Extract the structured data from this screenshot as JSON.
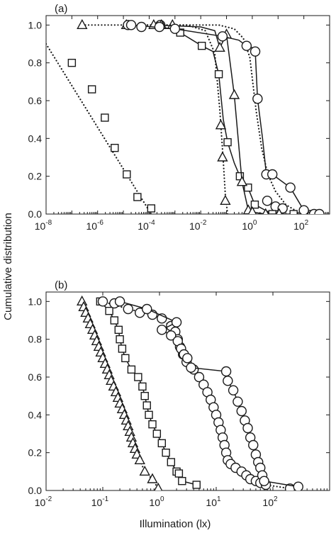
{
  "figure": {
    "ylabel": "Cumulative distribution",
    "xlabel": "Illumination (lx)"
  },
  "chart_data": [
    {
      "type": "line",
      "panel_label": "(a)",
      "x_scale": "log",
      "xlim": [
        1e-08,
        1000
      ],
      "ylim": [
        0,
        1.05
      ],
      "x_ticks": [
        {
          "base": "10",
          "exp": "-8"
        },
        {
          "base": "10",
          "exp": "-6"
        },
        {
          "base": "10",
          "exp": "-4"
        },
        {
          "base": "10",
          "exp": "-2"
        },
        {
          "base": "10",
          "exp": "0"
        },
        {
          "base": "10",
          "exp": "2"
        }
      ],
      "y_tick_labels": [
        "0.0",
        "0.2",
        "0.4",
        "0.6",
        "0.8",
        "1.0"
      ],
      "y_ticks": [
        0,
        0.2,
        0.4,
        0.6,
        0.8,
        1.0
      ],
      "grid": false,
      "series": [
        {
          "marker": "square",
          "line": "dotted",
          "x": [
            1e-07,
            6e-07,
            1.9e-06,
            4.6e-06,
            1.35e-05,
            3.5e-05,
            0.00012
          ],
          "y": [
            0.8,
            0.66,
            0.51,
            0.35,
            0.21,
            0.09,
            0.03
          ],
          "curve_x": [
            1e-08,
            0.00012
          ],
          "curve_y": [
            0.9,
            0.0
          ]
        },
        {
          "marker": "triangle",
          "line": "dotted",
          "x": [
            2.5e-07,
            1.3e-05,
            0.0008,
            0.06,
            0.07,
            0.09
          ],
          "y": [
            1.0,
            1.0,
            1.0,
            0.47,
            0.3,
            0.07
          ],
          "curve_x": [
            2.5e-07,
            0.003,
            0.015,
            0.035,
            0.055,
            0.075,
            0.09,
            0.11
          ],
          "curve_y": [
            1.0,
            1.0,
            0.97,
            0.85,
            0.55,
            0.28,
            0.1,
            0.0
          ]
        },
        {
          "marker": "circle",
          "line": "dotted",
          "x": [
            1.5e-05,
            0.00027,
            3.8,
            8,
            15
          ],
          "y": [
            1.0,
            1.0,
            0.07,
            0.04,
            0.03
          ],
          "curve_x": [
            1.5e-05,
            0.05,
            0.2,
            0.45,
            0.8,
            1.4,
            2.3,
            4,
            8,
            20,
            60,
            200
          ],
          "curve_y": [
            1.0,
            1.0,
            0.98,
            0.93,
            0.83,
            0.55,
            0.35,
            0.21,
            0.12,
            0.05,
            0.01,
            0.0
          ]
        },
        {
          "marker": "square",
          "line": "solid",
          "x": [
            0.0016,
            0.011,
            0.05,
            0.11,
            0.33,
            0.68,
            1.25,
            6,
            40,
            200,
            300
          ],
          "y": [
            0.96,
            0.89,
            0.74,
            0.38,
            0.2,
            0.14,
            0.05,
            0.0,
            0.0,
            0.0,
            0.0
          ],
          "curve_x": [
            0.0016,
            0.011,
            0.03,
            0.05,
            0.075,
            0.11,
            0.2,
            0.33,
            0.68,
            1.25,
            6,
            40,
            300
          ],
          "curve_y": [
            0.96,
            0.89,
            0.86,
            0.74,
            0.5,
            0.38,
            0.27,
            0.2,
            0.14,
            0.05,
            0.0,
            0.0,
            0.0
          ]
        },
        {
          "marker": "triangle",
          "line": "solid",
          "x": [
            0.00015,
            0.0003,
            0.055,
            0.1,
            0.2,
            0.4,
            0.7,
            1.0,
            3.3,
            11
          ],
          "y": [
            1.0,
            1.0,
            0.88,
            0.95,
            0.63,
            0.17,
            0.02,
            0.01,
            0.0,
            0.0
          ],
          "curve_x": [
            0.00015,
            0.01,
            0.035,
            0.055,
            0.1,
            0.2,
            0.4,
            0.7,
            1.0,
            3.3,
            11
          ],
          "curve_y": [
            1.0,
            0.99,
            0.97,
            0.88,
            0.95,
            0.63,
            0.17,
            0.02,
            0.01,
            0.0,
            0.0
          ]
        },
        {
          "marker": "circle",
          "line": "solid",
          "x": [
            2e-05,
            5e-05,
            0.00025,
            0.001,
            0.07,
            0.6,
            1.3,
            1.6,
            3.5,
            6,
            30,
            100,
            250,
            400
          ],
          "y": [
            1.0,
            0.99,
            0.99,
            0.98,
            0.94,
            0.89,
            0.86,
            0.61,
            0.21,
            0.21,
            0.14,
            0.02,
            0.0,
            0.0
          ],
          "curve_x": [
            2e-05,
            0.001,
            0.07,
            0.3,
            0.6,
            1.0,
            1.3,
            1.6,
            2.5,
            3.5,
            6,
            30,
            100,
            250,
            400
          ],
          "curve_y": [
            1.0,
            0.98,
            0.94,
            0.92,
            0.89,
            0.88,
            0.86,
            0.61,
            0.4,
            0.21,
            0.21,
            0.14,
            0.02,
            0.0,
            0.0
          ]
        }
      ]
    },
    {
      "type": "line",
      "panel_label": "(b)",
      "x_scale": "log",
      "xlim": [
        0.01,
        1000
      ],
      "ylim": [
        0,
        1.05
      ],
      "x_ticks": [
        {
          "base": "10",
          "exp": "-2"
        },
        {
          "base": "10",
          "exp": "-1"
        },
        {
          "base": "10",
          "exp": "0"
        },
        {
          "base": "10",
          "exp": "1"
        },
        {
          "base": "10",
          "exp": "2"
        }
      ],
      "y_tick_labels": [
        "0.0",
        "0.2",
        "0.4",
        "0.6",
        "0.8",
        "1.0"
      ],
      "y_ticks": [
        0,
        0.2,
        0.4,
        0.6,
        0.8,
        1.0
      ],
      "grid": false,
      "series": [
        {
          "marker": "triangle",
          "line": "dotted",
          "x": [
            0.043,
            0.046,
            0.05,
            0.055,
            0.06,
            0.066,
            0.072,
            0.078,
            0.085,
            0.092,
            0.1,
            0.11,
            0.12,
            0.13,
            0.14,
            0.155,
            0.17,
            0.185,
            0.2,
            0.22,
            0.24,
            0.26,
            0.28,
            0.3,
            0.32,
            0.34,
            0.37,
            0.4,
            0.45,
            0.55,
            0.75,
            0.95
          ],
          "y": [
            1.0,
            0.97,
            0.94,
            0.91,
            0.88,
            0.85,
            0.82,
            0.79,
            0.76,
            0.73,
            0.7,
            0.67,
            0.64,
            0.61,
            0.58,
            0.55,
            0.52,
            0.49,
            0.46,
            0.43,
            0.4,
            0.37,
            0.34,
            0.31,
            0.28,
            0.25,
            0.22,
            0.19,
            0.16,
            0.1,
            0.06,
            0.01
          ],
          "curve_x": [
            0.043,
            0.05,
            0.06,
            0.072,
            0.085,
            0.1,
            0.12,
            0.14,
            0.17,
            0.2,
            0.24,
            0.28,
            0.32,
            0.37,
            0.45,
            0.55,
            0.75,
            0.95,
            1.1
          ],
          "curve_y": [
            1.0,
            0.94,
            0.88,
            0.82,
            0.76,
            0.7,
            0.64,
            0.58,
            0.52,
            0.46,
            0.4,
            0.34,
            0.28,
            0.22,
            0.16,
            0.1,
            0.06,
            0.01,
            0.0
          ]
        },
        {
          "marker": "square",
          "line": "solid",
          "x": [
            0.09,
            0.13,
            0.16,
            0.19,
            0.2,
            0.22,
            0.25,
            0.32,
            0.42,
            0.5,
            0.55,
            0.6,
            0.65,
            0.75,
            0.9,
            1.1,
            1.3,
            1.6,
            2.0,
            2.2,
            2.5,
            4.5
          ],
          "y": [
            1.0,
            0.95,
            0.9,
            0.85,
            0.8,
            0.75,
            0.7,
            0.64,
            0.6,
            0.55,
            0.5,
            0.45,
            0.4,
            0.35,
            0.3,
            0.25,
            0.2,
            0.15,
            0.1,
            0.09,
            0.05,
            0.03
          ],
          "curve_x": [
            0.09,
            0.13,
            0.16,
            0.19,
            0.2,
            0.22,
            0.25,
            0.32,
            0.42,
            0.5,
            0.55,
            0.6,
            0.65,
            0.75,
            0.9,
            1.1,
            1.3,
            1.6,
            2.0,
            2.2,
            2.5,
            4.5
          ],
          "curve_y": [
            1.0,
            0.95,
            0.9,
            0.85,
            0.8,
            0.75,
            0.7,
            0.64,
            0.6,
            0.55,
            0.5,
            0.45,
            0.4,
            0.35,
            0.3,
            0.25,
            0.2,
            0.15,
            0.1,
            0.09,
            0.05,
            0.03
          ]
        },
        {
          "marker": "circle",
          "line": "dotted",
          "x": [
            0.1,
            0.16,
            0.28,
            0.45,
            0.75,
            1.1,
            1.6,
            1.9,
            2.1,
            2.3,
            2.6,
            3.0,
            4.0,
            5.0,
            6.0,
            7.0,
            8.0,
            9.0,
            10.0,
            11.0,
            12.0,
            13.0,
            14.0,
            15.0,
            16.0,
            18.0,
            22.0,
            28.0,
            34.0,
            40.0,
            50.0,
            60.0,
            75.0,
            200.0
          ],
          "y": [
            1.0,
            0.99,
            0.96,
            0.94,
            0.93,
            0.91,
            0.87,
            0.84,
            0.8,
            0.76,
            0.72,
            0.68,
            0.64,
            0.6,
            0.56,
            0.52,
            0.48,
            0.44,
            0.4,
            0.36,
            0.32,
            0.28,
            0.24,
            0.2,
            0.16,
            0.14,
            0.12,
            0.1,
            0.08,
            0.06,
            0.05,
            0.04,
            0.03,
            0.01
          ],
          "curve_x": [
            0.1,
            0.28,
            0.75,
            1.6,
            2.6,
            4.0,
            6.0,
            8.0,
            10.0,
            12.0,
            14.0,
            16.0,
            22.0,
            34.0,
            50.0,
            75.0,
            200.0
          ],
          "curve_y": [
            1.0,
            0.96,
            0.93,
            0.87,
            0.72,
            0.64,
            0.56,
            0.48,
            0.4,
            0.32,
            0.24,
            0.16,
            0.12,
            0.08,
            0.05,
            0.03,
            0.01
          ]
        },
        {
          "marker": "circle",
          "line": "solid",
          "x": [
            0.2,
            0.6,
            2.0,
            1.1,
            1.6,
            2.1,
            2.4,
            2.7,
            3.1,
            3.6,
            15.0,
            16.0,
            20.0,
            24.0,
            28.0,
            32.0,
            36.0,
            40.0,
            45.0,
            50.0,
            55.0,
            60.0,
            65.0,
            70.0,
            280.0
          ],
          "y": [
            1.0,
            0.96,
            0.89,
            0.85,
            0.82,
            0.79,
            0.75,
            0.72,
            0.7,
            0.65,
            0.63,
            0.58,
            0.53,
            0.47,
            0.42,
            0.37,
            0.33,
            0.28,
            0.24,
            0.19,
            0.15,
            0.12,
            0.08,
            0.05,
            0.02
          ],
          "curve_x": [
            0.2,
            0.6,
            2.0,
            1.1,
            1.6,
            2.1,
            2.4,
            2.7,
            3.1,
            3.6,
            15.0,
            16.0,
            20.0,
            24.0,
            28.0,
            32.0,
            36.0,
            40.0,
            45.0,
            50.0,
            55.0,
            60.0,
            65.0,
            70.0,
            280.0
          ],
          "curve_y": [
            1.0,
            0.96,
            0.89,
            0.85,
            0.82,
            0.79,
            0.75,
            0.72,
            0.7,
            0.65,
            0.63,
            0.58,
            0.53,
            0.47,
            0.42,
            0.37,
            0.33,
            0.28,
            0.24,
            0.19,
            0.15,
            0.12,
            0.08,
            0.05,
            0.02
          ]
        }
      ]
    }
  ]
}
